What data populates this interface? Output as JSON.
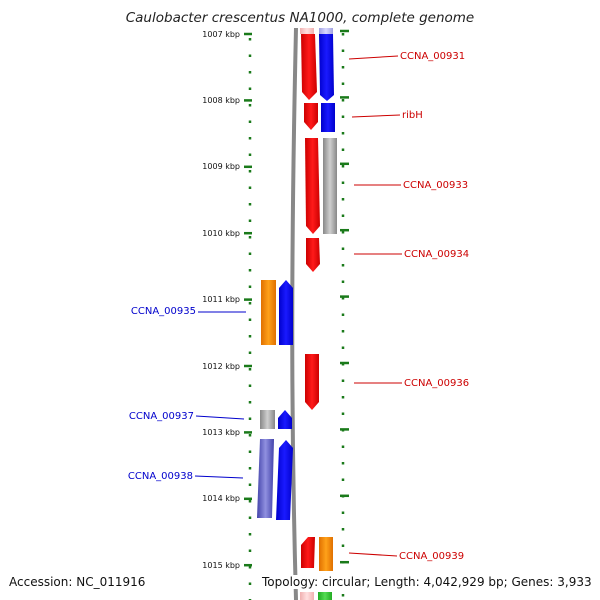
{
  "title": "Caulobacter crescentus NA1000, complete genome",
  "accession_text": "Accession: NC_011916",
  "topology_text": "Topology: circular; Length: 4,042,929 bp; Genes: 3,933",
  "colors": {
    "forward_gene": "#ff0000",
    "forward_gene_alt": "#0000ff",
    "reverse_gene": "#0000ff",
    "reverse_gene_alt": "#ff8c00",
    "gray_gene": "#aaaaaa",
    "green_gene": "#33cc33",
    "forward_label": "#cc0000",
    "reverse_label": "#0000cc",
    "scale_ticks": "#1a7a1a",
    "backbone": "#888888"
  },
  "scale_labels": [
    "1007 kbp",
    "1008 kbp",
    "1009 kbp",
    "1010 kbp",
    "1011 kbp",
    "1012 kbp",
    "1013 kbp",
    "1014 kbp",
    "1015 kbp"
  ],
  "forward_labels": [
    "CCNA_00931",
    "ribH",
    "CCNA_00933",
    "CCNA_00934",
    "CCNA_00936",
    "CCNA_00939"
  ],
  "reverse_labels": [
    "CCNA_00935",
    "CCNA_00937",
    "CCNA_00938"
  ]
}
